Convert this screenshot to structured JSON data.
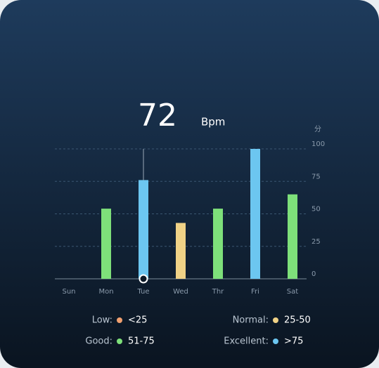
{
  "chart_data": {
    "type": "bar",
    "headline": {
      "value": "72",
      "unit": "Bpm"
    },
    "y_unit": "分",
    "categories": [
      "Sun",
      "Mon",
      "Tue",
      "Wed",
      "Thr",
      "Fri",
      "Sat"
    ],
    "values": [
      null,
      54,
      76,
      43,
      54,
      100,
      65
    ],
    "colors": [
      null,
      "#7ee07a",
      "#6cc6f0",
      "#f0d286",
      "#7ee07a",
      "#6cc6f0",
      "#7ee07a"
    ],
    "selected_index": 2,
    "ylim": [
      0,
      100
    ],
    "yticks": [
      0,
      25,
      50,
      75,
      100
    ],
    "grid": true,
    "legend": [
      {
        "label": "Low:",
        "range": "<25",
        "color": "#f0a070"
      },
      {
        "label": "Normal:",
        "range": "25-50",
        "color": "#f0d286"
      },
      {
        "label": "Good:",
        "range": "51-75",
        "color": "#7ee07a"
      },
      {
        "label": "Excellent:",
        "range": ">75",
        "color": "#6cc6f0"
      }
    ]
  }
}
